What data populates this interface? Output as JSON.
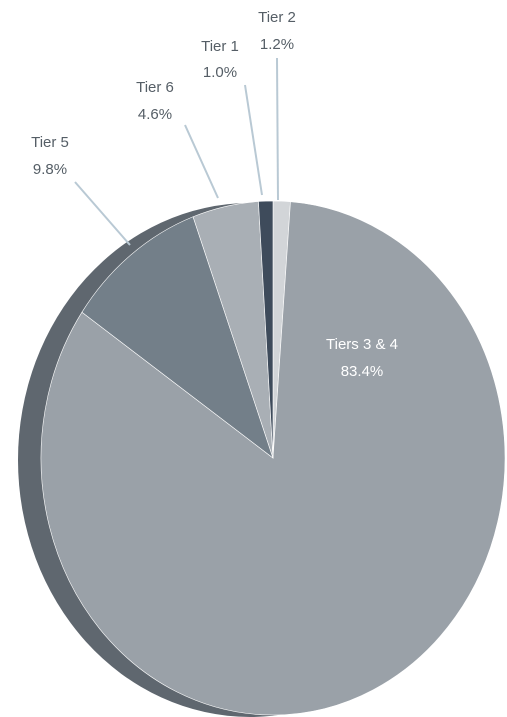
{
  "chart_data": {
    "type": "pie",
    "categories": [
      "Tier 2",
      "Tiers 3 & 4",
      "Tier 5",
      "Tier 6",
      "Tier 1"
    ],
    "values": [
      1.2,
      83.4,
      9.8,
      4.6,
      1.0
    ],
    "value_labels": [
      "1.2%",
      "83.4%",
      "9.8%",
      "4.6%",
      "1.0%"
    ],
    "colors": [
      "#d2d5d8",
      "#9aa1a8",
      "#737f89",
      "#a9afb5",
      "#3e4b5b"
    ]
  }
}
